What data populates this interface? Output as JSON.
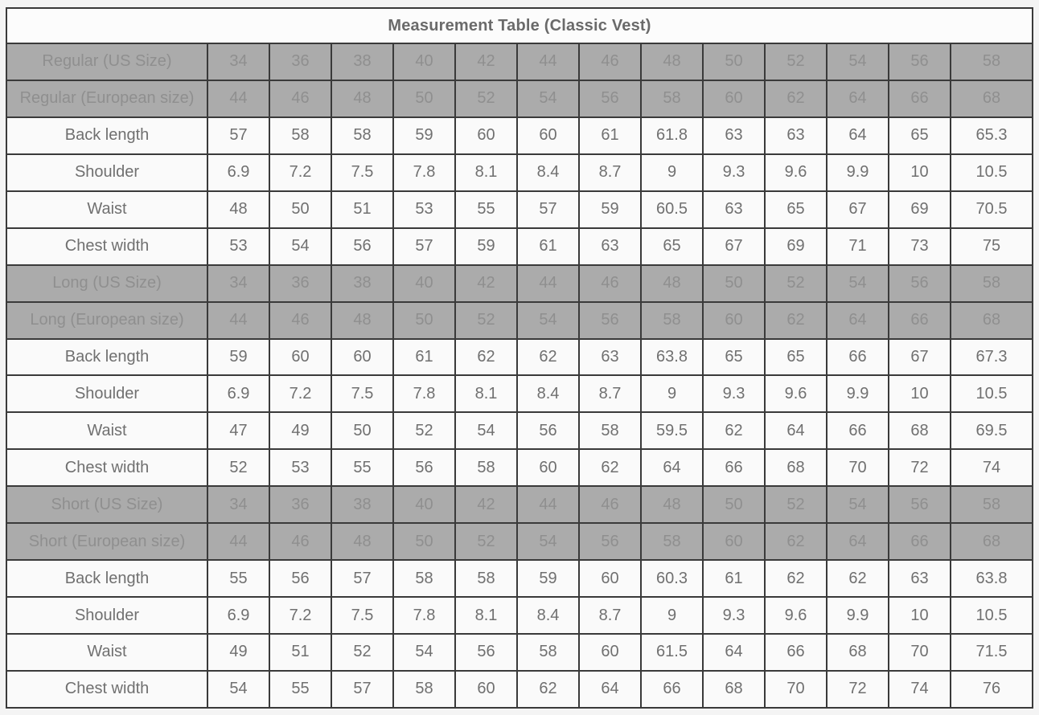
{
  "title": "Measurement Table (Classic Vest)",
  "colors": {
    "page_background": "#f4f4f4",
    "border": "#3a3a3a",
    "title_background": "#fcfcfc",
    "title_text": "#6a6a6a",
    "size_row_background": "#ababab",
    "size_row_text": "#8f8f8f",
    "data_row_background": "#fafafa",
    "data_row_text": "#707070"
  },
  "rows": [
    {
      "type": "size",
      "label": "Regular (US Size)",
      "values": [
        "34",
        "36",
        "38",
        "40",
        "42",
        "44",
        "46",
        "48",
        "50",
        "52",
        "54",
        "56",
        "58"
      ]
    },
    {
      "type": "size",
      "label": "Regular (European size)",
      "values": [
        "44",
        "46",
        "48",
        "50",
        "52",
        "54",
        "56",
        "58",
        "60",
        "62",
        "64",
        "66",
        "68"
      ]
    },
    {
      "type": "data",
      "label": "Back length",
      "values": [
        "57",
        "58",
        "58",
        "59",
        "60",
        "60",
        "61",
        "61.8",
        "63",
        "63",
        "64",
        "65",
        "65.3"
      ]
    },
    {
      "type": "data",
      "label": "Shoulder",
      "values": [
        "6.9",
        "7.2",
        "7.5",
        "7.8",
        "8.1",
        "8.4",
        "8.7",
        "9",
        "9.3",
        "9.6",
        "9.9",
        "10",
        "10.5"
      ]
    },
    {
      "type": "data",
      "label": "Waist",
      "values": [
        "48",
        "50",
        "51",
        "53",
        "55",
        "57",
        "59",
        "60.5",
        "63",
        "65",
        "67",
        "69",
        "70.5"
      ]
    },
    {
      "type": "data",
      "label": "Chest width",
      "values": [
        "53",
        "54",
        "56",
        "57",
        "59",
        "61",
        "63",
        "65",
        "67",
        "69",
        "71",
        "73",
        "75"
      ]
    },
    {
      "type": "size",
      "label": "Long (US Size)",
      "values": [
        "34",
        "36",
        "38",
        "40",
        "42",
        "44",
        "46",
        "48",
        "50",
        "52",
        "54",
        "56",
        "58"
      ]
    },
    {
      "type": "size",
      "label": "Long (European size)",
      "values": [
        "44",
        "46",
        "48",
        "50",
        "52",
        "54",
        "56",
        "58",
        "60",
        "62",
        "64",
        "66",
        "68"
      ]
    },
    {
      "type": "data",
      "label": "Back length",
      "values": [
        "59",
        "60",
        "60",
        "61",
        "62",
        "62",
        "63",
        "63.8",
        "65",
        "65",
        "66",
        "67",
        "67.3"
      ]
    },
    {
      "type": "data",
      "label": "Shoulder",
      "values": [
        "6.9",
        "7.2",
        "7.5",
        "7.8",
        "8.1",
        "8.4",
        "8.7",
        "9",
        "9.3",
        "9.6",
        "9.9",
        "10",
        "10.5"
      ]
    },
    {
      "type": "data",
      "label": "Waist",
      "values": [
        "47",
        "49",
        "50",
        "52",
        "54",
        "56",
        "58",
        "59.5",
        "62",
        "64",
        "66",
        "68",
        "69.5"
      ]
    },
    {
      "type": "data",
      "label": "Chest width",
      "values": [
        "52",
        "53",
        "55",
        "56",
        "58",
        "60",
        "62",
        "64",
        "66",
        "68",
        "70",
        "72",
        "74"
      ]
    },
    {
      "type": "size",
      "label": "Short (US Size)",
      "values": [
        "34",
        "36",
        "38",
        "40",
        "42",
        "44",
        "46",
        "48",
        "50",
        "52",
        "54",
        "56",
        "58"
      ]
    },
    {
      "type": "size",
      "label": "Short (European size)",
      "values": [
        "44",
        "46",
        "48",
        "50",
        "52",
        "54",
        "56",
        "58",
        "60",
        "62",
        "64",
        "66",
        "68"
      ]
    },
    {
      "type": "data",
      "label": "Back length",
      "values": [
        "55",
        "56",
        "57",
        "58",
        "58",
        "59",
        "60",
        "60.3",
        "61",
        "62",
        "62",
        "63",
        "63.8"
      ]
    },
    {
      "type": "data",
      "label": "Shoulder",
      "values": [
        "6.9",
        "7.2",
        "7.5",
        "7.8",
        "8.1",
        "8.4",
        "8.7",
        "9",
        "9.3",
        "9.6",
        "9.9",
        "10",
        "10.5"
      ]
    },
    {
      "type": "data",
      "label": "Waist",
      "values": [
        "49",
        "51",
        "52",
        "54",
        "56",
        "58",
        "60",
        "61.5",
        "64",
        "66",
        "68",
        "70",
        "71.5"
      ]
    },
    {
      "type": "data",
      "label": "Chest width",
      "values": [
        "54",
        "55",
        "57",
        "58",
        "60",
        "62",
        "64",
        "66",
        "68",
        "70",
        "72",
        "74",
        "76"
      ]
    }
  ]
}
